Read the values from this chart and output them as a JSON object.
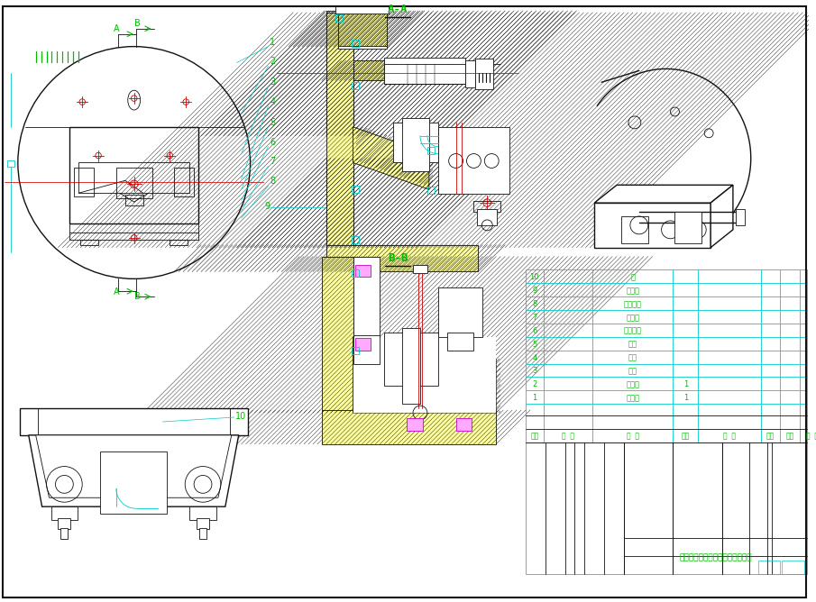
{
  "bg_color": "#ffffff",
  "cyan": "#00CCCC",
  "green": "#00BB00",
  "black": "#111111",
  "red": "#CC0000",
  "magenta": "#CC00CC",
  "hatch_fill": "#FFFF99",
  "gray_fill": "#AAAAAA",
  "title": "弯管接头加工工艺编制及夹具设计",
  "section_AA": "A-A",
  "section_BB": "B-B",
  "parts_num": [
    "10",
    "9",
    "8",
    "7",
    "6",
    "5",
    "4",
    "3",
    "2",
    "1"
  ],
  "part_names": [
    "轴",
    "连接柱",
    "调节螺钉",
    "支撑盘",
    "调节螺旋",
    "楔块",
    "螺旋",
    "螺栓",
    "夹紧件",
    "平衡块"
  ],
  "part_qty": [
    "",
    "",
    "",
    "",
    "",
    "",
    "",
    "",
    "1",
    "1"
  ],
  "table_header": [
    "序号",
    "代  号",
    "名  称",
    "数量",
    "材  料",
    "单件",
    "总计",
    "备  注"
  ]
}
